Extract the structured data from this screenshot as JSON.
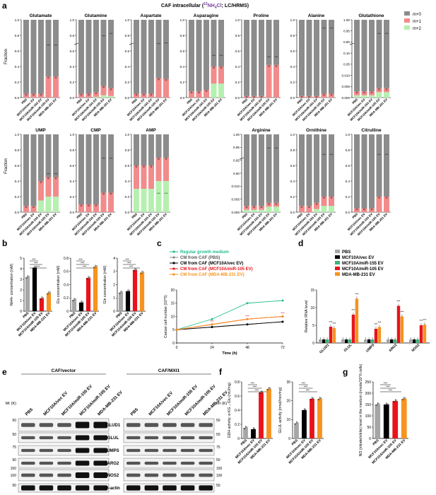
{
  "panel_letters": [
    "a",
    "b",
    "c",
    "d",
    "e",
    "f",
    "g"
  ],
  "header": {
    "title_before": "CAF intracellular (",
    "title_iso_sup": "15",
    "title_iso_rest": "NH",
    "title_iso_sub": "4",
    "title_iso_tail": "Cl",
    "title_after": "; LC/HRMS)"
  },
  "colors": {
    "m0": "#8c8c8c",
    "m1": "#f28b8b",
    "m2": "#b6f0b0",
    "pbs": "#a6a6a6",
    "vec": "#000000",
    "mir155": "#3cb37a",
    "mir105": "#e8141b",
    "mdamb": "#f7931e"
  },
  "legend_a": [
    "m+0",
    "m+1",
    "m+2"
  ],
  "groups_5": [
    "PBS",
    "MCF10A/vec EV",
    "MCF10A/miR-155 EV",
    "MCF10A/miR-105 EV",
    "MDA-MB-231 EV"
  ],
  "groups_4": [
    "PBS",
    "MCF10A/vec EV",
    "MCF10A/miR-105 EV",
    "MDA-MB-231 EV"
  ],
  "fraction_label": "Fraction",
  "metabolites_row1": [
    "Glutamate",
    "Glutamine",
    "Aspartate",
    "Asparagine",
    "Proline",
    "Alanine",
    "Glutathione"
  ],
  "metabolites_row2": [
    "UMP",
    "CMP",
    "AMP",
    "Arginine",
    "Ornithine",
    "Citrulline"
  ],
  "y_ticks_main": [
    "0.0",
    "0.2",
    "0.4",
    "0.6",
    "0.8",
    "1.0"
  ],
  "y_ticks_glutathione": [
    "1.00",
    "0.95",
    "0.90",
    "0.10",
    "0.05",
    "0.010",
    "0.005",
    "0.000"
  ],
  "y_ticks_arginine": [
    "1.00",
    "0.95",
    "0.65",
    "0.60",
    "0.010",
    "0.005",
    "0.000"
  ],
  "chart_data": [
    {
      "panel": "a",
      "type": "bar",
      "stacked": true,
      "categories": [
        "PBS",
        "MCF10A/vec EV",
        "MCF10A/miR-155 EV",
        "MCF10A/miR-105 EV",
        "MDA-MB-231 EV"
      ],
      "metabolites": {
        "Glutamate": {
          "m0": [
            0.95,
            0.95,
            0.95,
            0.73,
            0.73
          ],
          "m1": [
            0.05,
            0.05,
            0.05,
            0.27,
            0.27
          ],
          "m2": [
            0,
            0,
            0,
            0,
            0
          ]
        },
        "Glutamine": {
          "m0": [
            0.95,
            0.95,
            0.93,
            0.85,
            0.88
          ],
          "m1": [
            0.05,
            0.05,
            0.06,
            0.12,
            0.1
          ],
          "m2": [
            0,
            0,
            0.01,
            0.03,
            0.02
          ]
        },
        "Aspartate": {
          "m0": [
            0.95,
            0.95,
            0.95,
            0.75,
            0.76
          ],
          "m1": [
            0.05,
            0.05,
            0.05,
            0.25,
            0.24
          ],
          "m2": [
            0,
            0,
            0,
            0,
            0
          ]
        },
        "Asparagine": {
          "m0": [
            0.92,
            0.92,
            0.9,
            0.6,
            0.6
          ],
          "m1": [
            0.08,
            0.08,
            0.1,
            0.22,
            0.22
          ],
          "m2": [
            0,
            0,
            0,
            0.18,
            0.18
          ]
        },
        "Proline": {
          "m0": [
            0.98,
            0.98,
            0.98,
            0.58,
            0.58
          ],
          "m1": [
            0.02,
            0.02,
            0.02,
            0.42,
            0.42
          ],
          "m2": [
            0,
            0,
            0,
            0,
            0
          ]
        },
        "Alanine": {
          "m0": [
            0.98,
            0.98,
            0.98,
            0.95,
            0.95
          ],
          "m1": [
            0.02,
            0.02,
            0.02,
            0.05,
            0.05
          ],
          "m2": [
            0,
            0,
            0,
            0,
            0
          ]
        },
        "UMP": {
          "m0": [
            0.92,
            0.92,
            0.6,
            0.55,
            0.55
          ],
          "m1": [
            0.08,
            0.08,
            0.25,
            0.25,
            0.25
          ],
          "m2": [
            0,
            0,
            0.15,
            0.2,
            0.2
          ]
        },
        "CMP": {
          "m0": [
            0.9,
            0.9,
            0.9,
            0.75,
            0.75
          ],
          "m1": [
            0.1,
            0.1,
            0.1,
            0.25,
            0.25
          ],
          "m2": [
            0,
            0,
            0,
            0,
            0
          ]
        },
        "AMP": {
          "m0": [
            0.4,
            0.4,
            0.4,
            0.3,
            0.3
          ],
          "m1": [
            0.3,
            0.3,
            0.3,
            0.3,
            0.3
          ],
          "m2": [
            0.3,
            0.3,
            0.3,
            0.4,
            0.4
          ]
        },
        "Ornithine": {
          "m0": [
            0.92,
            0.92,
            0.88,
            0.8,
            0.8
          ],
          "m1": [
            0.08,
            0.08,
            0.08,
            0.12,
            0.12
          ],
          "m2": [
            0,
            0,
            0.04,
            0.08,
            0.08
          ]
        },
        "Citrulline": {
          "m0": [
            0.95,
            0.95,
            0.95,
            0.8,
            0.8
          ],
          "m1": [
            0.05,
            0.05,
            0.05,
            0.2,
            0.2
          ],
          "m2": [
            0,
            0,
            0,
            0,
            0
          ]
        }
      }
    },
    {
      "panel": "b",
      "type": "bar",
      "categories": [
        "PBS",
        "MCF10A/vec EV",
        "MCF10A/miR-105 EV",
        "MDA-MB-231 EV"
      ],
      "subplots": [
        {
          "ylabel": "NH4+ concentration (mM)",
          "ylim": [
            0,
            5
          ],
          "yticks": [
            0,
            1,
            2,
            3,
            4,
            5
          ],
          "values": [
            3.2,
            4.1,
            1.2,
            1.7
          ]
        },
        {
          "ylabel": "Glu concentration (mM)",
          "ylim": [
            0,
            0.8
          ],
          "yticks": [
            0,
            0.2,
            0.4,
            0.6,
            0.8
          ],
          "values": [
            0.17,
            0.13,
            0.5,
            0.67
          ]
        },
        {
          "ylabel": "Gln concentration (mM)",
          "ylim": [
            0,
            4
          ],
          "yticks": [
            0,
            1,
            2,
            3,
            4
          ],
          "values": [
            1.4,
            1.5,
            3.1,
            2.9
          ]
        }
      ]
    },
    {
      "panel": "c",
      "type": "line",
      "x": [
        0,
        24,
        48,
        72
      ],
      "xlabel": "Time (h)",
      "ylabel": "Cancer cell number (10^5)",
      "ylim": [
        0,
        20
      ],
      "yticks": [
        0,
        5,
        10,
        15,
        20
      ],
      "series": [
        {
          "name": "Regular growth medium",
          "values": [
            5,
            9,
            15,
            16
          ]
        },
        {
          "name": "CM from CAF (PBS)",
          "values": [
            5,
            6,
            7,
            8
          ]
        },
        {
          "name": "CM from CAF (MCF10A/vec EV)",
          "values": [
            5,
            6,
            7,
            8
          ]
        },
        {
          "name": "CM from CAF (MCF10A/miR-105 EV)",
          "values": [
            5,
            7,
            9,
            10
          ]
        },
        {
          "name": "CM from CAF (MDA-MB-231 EV)",
          "values": [
            5,
            7,
            9,
            10
          ]
        }
      ]
    },
    {
      "panel": "d",
      "type": "bar",
      "categories": [
        "GLUD1",
        "GLUL",
        "UMPS",
        "ARG2",
        "NOS2"
      ],
      "ylabel": "Relative RNA level",
      "ylim": [
        0,
        15
      ],
      "yticks": [
        0,
        5,
        10,
        15
      ],
      "series": [
        {
          "name": "PBS",
          "values": [
            1,
            1,
            1,
            1,
            1
          ]
        },
        {
          "name": "MCF10A/vec EV",
          "values": [
            1,
            1,
            1,
            1,
            1
          ]
        },
        {
          "name": "MCF10A/miR-155 EV",
          "values": [
            1,
            1,
            1,
            1,
            1
          ]
        },
        {
          "name": "MCF10A/miR-105 EV",
          "values": [
            4.6,
            8,
            4,
            10.5,
            5
          ]
        },
        {
          "name": "MDA-MB-231 EV",
          "values": [
            4.2,
            12.5,
            4.5,
            7.5,
            5.2
          ]
        }
      ]
    },
    {
      "panel": "f",
      "type": "bar",
      "categories": [
        "PBS",
        "MCF10A/vec EV",
        "MCF10A/miR-105 EV",
        "MDA-MB-231 EV"
      ],
      "subplots": [
        {
          "ylabel": "GDH activity: α-KG→Glu (mU/mg)",
          "ylim": [
            0,
            0.8
          ],
          "yticks": [
            0,
            0.2,
            0.4,
            0.6,
            0.8
          ],
          "values": [
            0.15,
            0.13,
            0.65,
            0.7
          ]
        },
        {
          "ylabel": "GLUL activity (nmol/min/mg)",
          "ylim": [
            0,
            30
          ],
          "yticks": [
            0,
            10,
            20,
            30
          ],
          "values": [
            8,
            15,
            21,
            21
          ]
        }
      ]
    },
    {
      "panel": "g",
      "type": "bar",
      "categories": [
        "PBS",
        "MCF10A/vec EV",
        "MCF10A/miR-105 EV",
        "MDA-MB-231 EV"
      ],
      "ylabel": "NO (nitrate/nitrite) level in the medium (nmole/10^6 cells)",
      "ylim": [
        0,
        250
      ],
      "yticks": [
        0,
        50,
        100,
        150,
        200,
        250
      ],
      "values": [
        150,
        150,
        165,
        175
      ]
    }
  ],
  "panel_c": {
    "legend": [
      "Regular growth medium",
      "CM from CAF (PBS)",
      "CM from CAF (MCF10A/vec EV)",
      "CM from CAF (MCF10A/miR-105 EV)",
      "CM from CAF (MDA-MB-231 EV)"
    ],
    "xticks": [
      "0",
      "24",
      "48",
      "72"
    ]
  },
  "panel_e": {
    "left_title": "CAF/vector",
    "right_title": "CAF/MXI1",
    "mr_label": "Mr (K)",
    "proteins": [
      "GLUD1",
      "GLUL",
      "UMPS",
      "ARG2",
      "NOS2",
      "β-actin"
    ],
    "mw_markers": [
      "50",
      "50",
      "75",
      "50",
      "150",
      "100",
      "50"
    ]
  },
  "sig": "***"
}
